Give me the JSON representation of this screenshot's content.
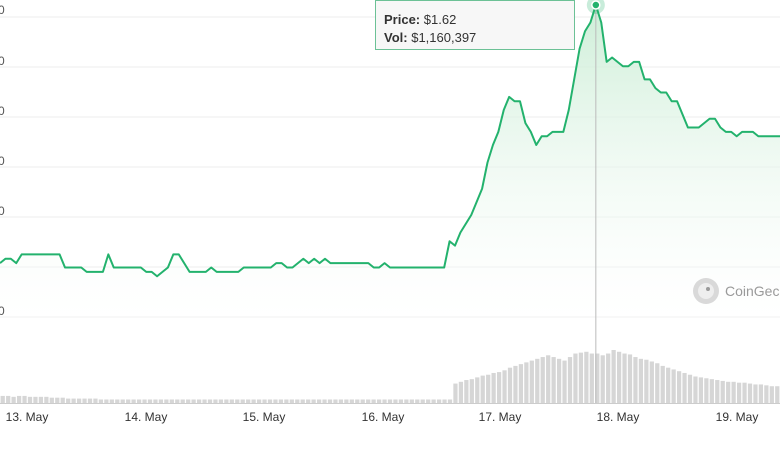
{
  "tooltip": {
    "price_label": "Price:",
    "price_value": "$1.62",
    "vol_label": "Vol:",
    "vol_value": "$1,160,397"
  },
  "watermark": {
    "text": "CoinGec"
  },
  "y_tick_labels": [
    "0",
    "0",
    "0",
    "0",
    "0",
    "0"
  ],
  "colors": {
    "line": "#23b26d",
    "area": "#e9f7ec",
    "volume": "#d6d6d6",
    "grid": "#eeeeee"
  },
  "chart_data": {
    "type": "line",
    "title": "",
    "xlabel": "",
    "ylabel": "",
    "x_ticks": [
      "13. May",
      "14. May",
      "15. May",
      "16. May",
      "17. May",
      "18. May",
      "19. May"
    ],
    "grid": true,
    "price_series": [
      1.03,
      1.04,
      1.04,
      1.03,
      1.05,
      1.05,
      1.05,
      1.05,
      1.05,
      1.05,
      1.05,
      1.05,
      1.02,
      1.02,
      1.02,
      1.02,
      1.01,
      1.01,
      1.01,
      1.01,
      1.05,
      1.02,
      1.02,
      1.02,
      1.02,
      1.02,
      1.02,
      1.01,
      1.01,
      1.0,
      1.01,
      1.02,
      1.05,
      1.05,
      1.03,
      1.01,
      1.01,
      1.01,
      1.01,
      1.02,
      1.01,
      1.01,
      1.01,
      1.01,
      1.01,
      1.02,
      1.02,
      1.02,
      1.02,
      1.02,
      1.02,
      1.03,
      1.03,
      1.02,
      1.02,
      1.03,
      1.04,
      1.03,
      1.04,
      1.03,
      1.04,
      1.03,
      1.03,
      1.03,
      1.03,
      1.03,
      1.03,
      1.03,
      1.03,
      1.02,
      1.02,
      1.03,
      1.02,
      1.02,
      1.02,
      1.02,
      1.02,
      1.02,
      1.02,
      1.02,
      1.02,
      1.02,
      1.02,
      1.08,
      1.07,
      1.1,
      1.12,
      1.14,
      1.17,
      1.2,
      1.26,
      1.3,
      1.33,
      1.38,
      1.41,
      1.4,
      1.4,
      1.35,
      1.33,
      1.3,
      1.32,
      1.32,
      1.33,
      1.33,
      1.33,
      1.38,
      1.45,
      1.52,
      1.56,
      1.58,
      1.62,
      1.58,
      1.49,
      1.5,
      1.49,
      1.48,
      1.48,
      1.49,
      1.49,
      1.45,
      1.45,
      1.43,
      1.42,
      1.42,
      1.4,
      1.4,
      1.37,
      1.34,
      1.34,
      1.34,
      1.35,
      1.36,
      1.36,
      1.34,
      1.33,
      1.33,
      1.32,
      1.33,
      1.33,
      1.33,
      1.32,
      1.32,
      1.32,
      1.32,
      1.32
    ],
    "volume_series": [
      8,
      8,
      7,
      8,
      8,
      7,
      7,
      7,
      7,
      6,
      6,
      6,
      5,
      5,
      5,
      5,
      5,
      5,
      4,
      4,
      4,
      4,
      4,
      4,
      4,
      4,
      4,
      4,
      4,
      4,
      4,
      4,
      4,
      4,
      4,
      4,
      4,
      4,
      4,
      4,
      4,
      4,
      4,
      4,
      4,
      4,
      4,
      4,
      4,
      4,
      4,
      4,
      4,
      4,
      4,
      4,
      4,
      4,
      4,
      4,
      4,
      4,
      4,
      4,
      4,
      4,
      4,
      4,
      4,
      4,
      4,
      4,
      4,
      4,
      4,
      4,
      4,
      4,
      4,
      4,
      4,
      4,
      4,
      22,
      24,
      26,
      27,
      29,
      31,
      32,
      34,
      35,
      37,
      40,
      42,
      44,
      46,
      48,
      50,
      52,
      54,
      52,
      50,
      48,
      52,
      56,
      57,
      58,
      56,
      56,
      54,
      56,
      60,
      58,
      56,
      55,
      52,
      50,
      49,
      47,
      45,
      42,
      40,
      38,
      36,
      34,
      32,
      30,
      29,
      28,
      27,
      26,
      25,
      24,
      24,
      23,
      23,
      22,
      21,
      21,
      20,
      19,
      19
    ],
    "tooltip_point": {
      "price": "$1.62",
      "volume": "$1,160,397"
    }
  }
}
